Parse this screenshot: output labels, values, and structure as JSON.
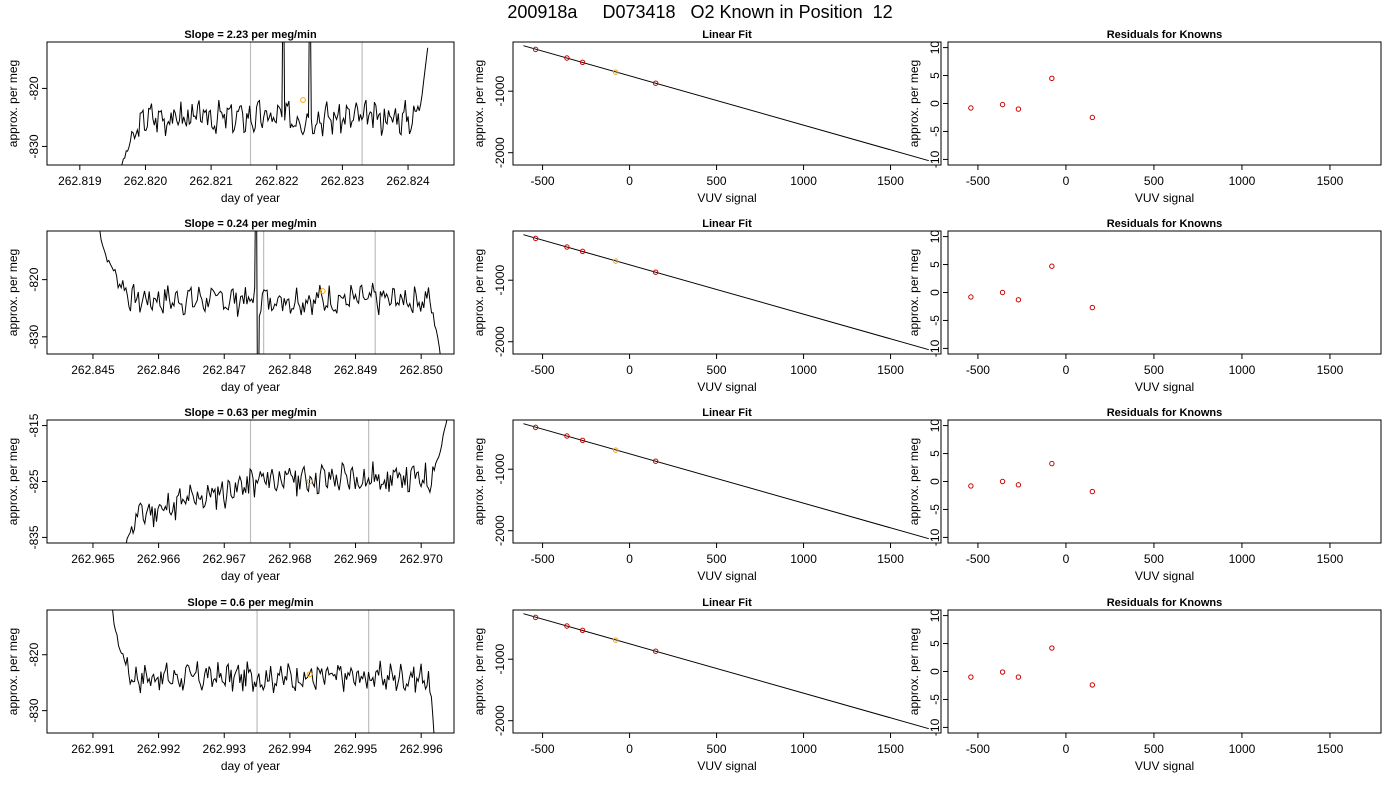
{
  "page_title": "200918a     D073418   O2 Known in Position  12",
  "colors": {
    "trace": "#000000",
    "marker_orange": "#ffa500",
    "residual_marker": "#cc0000",
    "vertical_line": "#bebebe"
  },
  "chart_data": [
    {
      "type": "line",
      "title": "Slope =  2.23  per meg/min",
      "xlabel": "day of year",
      "ylabel": "approx. per meg",
      "xlim": [
        262.8185,
        262.8247
      ],
      "ylim": [
        -833.2,
        -812.0
      ],
      "x_ticks": [
        "262.819",
        "262.820",
        "262.821",
        "262.822",
        "262.823",
        "262.824"
      ],
      "x_tick_values": [
        262.819,
        262.82,
        262.821,
        262.822,
        262.823,
        262.824
      ],
      "y_ticks": [
        "-830",
        "-820"
      ],
      "y_tick_values": [
        -830,
        -820
      ],
      "vertical_lines": [
        262.8216,
        262.8233
      ],
      "marker": {
        "x": 262.8224,
        "y": -822.0
      },
      "trace": {
        "x_start": 262.8196,
        "x_end": 262.8243,
        "flat_start": 262.82,
        "flat_end": 262.8241,
        "level": -825.0,
        "amplitude": 2.2,
        "rise_start": -836.0,
        "end_value": -813.0,
        "seed": 3,
        "spikes": [
          262.8221,
          262.8225
        ]
      }
    },
    {
      "type": "line",
      "title": "Linear Fit",
      "xlabel": "VUV signal",
      "ylabel": "approx. per meg",
      "xlim": [
        -670,
        1790
      ],
      "ylim": [
        -2200,
        -200
      ],
      "x_ticks": [
        "-500",
        "0",
        "500",
        "1000",
        "1500"
      ],
      "x_tick_values": [
        -500,
        0,
        500,
        1000,
        1500
      ],
      "y_ticks": [
        "-2000",
        "-1000"
      ],
      "y_tick_values": [
        -2000,
        -1000
      ],
      "line": {
        "x": [
          -610,
          1720
        ],
        "y": [
          -260,
          -2130
        ]
      },
      "points": [
        {
          "x": -540,
          "y": -320,
          "color": "red"
        },
        {
          "x": -360,
          "y": -460,
          "color": "red"
        },
        {
          "x": -270,
          "y": -530,
          "color": "red"
        },
        {
          "x": -80,
          "y": -690,
          "color": "orange"
        },
        {
          "x": 150,
          "y": -870,
          "color": "red"
        }
      ]
    },
    {
      "type": "scatter",
      "title": "Residuals for Knowns",
      "xlabel": "VUV signal",
      "ylabel": "approx. per meg",
      "xlim": [
        -670,
        1790
      ],
      "ylim": [
        -11,
        11
      ],
      "x_ticks": [
        "-500",
        "0",
        "500",
        "1000",
        "1500"
      ],
      "x_tick_values": [
        -500,
        0,
        500,
        1000,
        1500
      ],
      "y_ticks": [
        "-10",
        "-5",
        "0",
        "5",
        "10"
      ],
      "y_tick_values": [
        -10,
        -5,
        0,
        5,
        10
      ],
      "points": [
        {
          "x": -540,
          "y": -0.8
        },
        {
          "x": -360,
          "y": -0.2
        },
        {
          "x": -270,
          "y": -1.0
        },
        {
          "x": -80,
          "y": 4.5
        },
        {
          "x": 150,
          "y": -2.5
        }
      ]
    },
    {
      "type": "line",
      "title": "Slope =  0.24  per meg/min",
      "xlabel": "day of year",
      "ylabel": "approx. per meg",
      "xlim": [
        262.8443,
        262.8505
      ],
      "ylim": [
        -833.0,
        -811.5
      ],
      "x_ticks": [
        "262.845",
        "262.846",
        "262.847",
        "262.848",
        "262.849",
        "262.850"
      ],
      "x_tick_values": [
        262.845,
        262.846,
        262.847,
        262.848,
        262.849,
        262.85
      ],
      "y_ticks": [
        "-830",
        "-820"
      ],
      "y_tick_values": [
        -830,
        -820
      ],
      "vertical_lines": [
        262.8476,
        262.8493
      ],
      "marker": {
        "x": 262.8485,
        "y": -822.0
      },
      "trace": {
        "x_start": 262.8451,
        "x_end": 262.8503,
        "flat_start": 262.8456,
        "flat_end": 262.8501,
        "level": -823.5,
        "amplitude": 2.0,
        "rise_start": -811.0,
        "end_value": -834.0,
        "seed": 7,
        "spikes": [
          262.8475
        ]
      }
    },
    {
      "type": "line",
      "title": "Linear Fit",
      "xlabel": "VUV signal",
      "ylabel": "approx. per meg",
      "xlim": [
        -670,
        1790
      ],
      "ylim": [
        -2200,
        -200
      ],
      "x_ticks": [
        "-500",
        "0",
        "500",
        "1000",
        "1500"
      ],
      "x_tick_values": [
        -500,
        0,
        500,
        1000,
        1500
      ],
      "y_ticks": [
        "-2000",
        "-1000"
      ],
      "y_tick_values": [
        -2000,
        -1000
      ],
      "line": {
        "x": [
          -610,
          1720
        ],
        "y": [
          -260,
          -2130
        ]
      },
      "points": [
        {
          "x": -540,
          "y": -320,
          "color": "red"
        },
        {
          "x": -360,
          "y": -460,
          "color": "red"
        },
        {
          "x": -270,
          "y": -530,
          "color": "red"
        },
        {
          "x": -80,
          "y": -690,
          "color": "orange"
        },
        {
          "x": 150,
          "y": -870,
          "color": "red"
        }
      ]
    },
    {
      "type": "scatter",
      "title": "Residuals for Knowns",
      "xlabel": "VUV signal",
      "ylabel": "approx. per meg",
      "xlim": [
        -670,
        1790
      ],
      "ylim": [
        -11,
        11
      ],
      "x_ticks": [
        "-500",
        "0",
        "500",
        "1000",
        "1500"
      ],
      "x_tick_values": [
        -500,
        0,
        500,
        1000,
        1500
      ],
      "y_ticks": [
        "-10",
        "-5",
        "0",
        "5",
        "10"
      ],
      "y_tick_values": [
        -10,
        -5,
        0,
        5,
        10
      ],
      "points": [
        {
          "x": -540,
          "y": -0.8
        },
        {
          "x": -360,
          "y": 0.0
        },
        {
          "x": -270,
          "y": -1.3
        },
        {
          "x": -80,
          "y": 4.7
        },
        {
          "x": 150,
          "y": -2.7
        }
      ]
    },
    {
      "type": "line",
      "title": "Slope =  0.63  per meg/min",
      "xlabel": "day of year",
      "ylabel": "approx. per meg",
      "xlim": [
        262.9643,
        262.9705
      ],
      "ylim": [
        -836.0,
        -814.0
      ],
      "x_ticks": [
        "262.965",
        "262.966",
        "262.967",
        "262.968",
        "262.969",
        "262.970"
      ],
      "x_tick_values": [
        262.965,
        262.966,
        262.967,
        262.968,
        262.969,
        262.97
      ],
      "y_ticks": [
        "-835",
        "-825",
        "-815"
      ],
      "y_tick_values": [
        -835,
        -825,
        -815
      ],
      "vertical_lines": [
        262.9674,
        262.9692
      ],
      "marker": {
        "x": 262.9683,
        "y": -825.0
      },
      "trace": {
        "x_start": 262.9655,
        "x_end": 262.9704,
        "flat_start": 262.9657,
        "flat_end": 262.9701,
        "level_start": -831.0,
        "level": -824.5,
        "amplitude": 2.3,
        "rise_start": -836.5,
        "end_value": -813.5,
        "seed": 11,
        "spikes": []
      }
    },
    {
      "type": "line",
      "title": "Linear Fit",
      "xlabel": "VUV signal",
      "ylabel": "approx. per meg",
      "xlim": [
        -670,
        1790
      ],
      "ylim": [
        -2200,
        -200
      ],
      "x_ticks": [
        "-500",
        "0",
        "500",
        "1000",
        "1500"
      ],
      "x_tick_values": [
        -500,
        0,
        500,
        1000,
        1500
      ],
      "y_ticks": [
        "-2000",
        "-1000"
      ],
      "y_tick_values": [
        -2000,
        -1000
      ],
      "line": {
        "x": [
          -610,
          1720
        ],
        "y": [
          -260,
          -2130
        ]
      },
      "points": [
        {
          "x": -540,
          "y": -320,
          "color": "red"
        },
        {
          "x": -360,
          "y": -460,
          "color": "red"
        },
        {
          "x": -270,
          "y": -530,
          "color": "red"
        },
        {
          "x": -80,
          "y": -690,
          "color": "orange"
        },
        {
          "x": 150,
          "y": -870,
          "color": "red"
        }
      ]
    },
    {
      "type": "scatter",
      "title": "Residuals for Knowns",
      "xlabel": "VUV signal",
      "ylabel": "approx. per meg",
      "xlim": [
        -670,
        1790
      ],
      "ylim": [
        -11,
        11
      ],
      "x_ticks": [
        "-500",
        "0",
        "500",
        "1000",
        "1500"
      ],
      "x_tick_values": [
        -500,
        0,
        500,
        1000,
        1500
      ],
      "y_ticks": [
        "-10",
        "-5",
        "0",
        "5",
        "10"
      ],
      "y_tick_values": [
        -10,
        -5,
        0,
        5,
        10
      ],
      "points": [
        {
          "x": -540,
          "y": -0.8
        },
        {
          "x": -360,
          "y": 0.0
        },
        {
          "x": -270,
          "y": -0.6
        },
        {
          "x": -80,
          "y": 3.2
        },
        {
          "x": 150,
          "y": -1.8
        }
      ]
    },
    {
      "type": "line",
      "title": "Slope =  0.6  per meg/min",
      "xlabel": "day of year",
      "ylabel": "approx. per meg",
      "xlim": [
        262.9903,
        262.9965
      ],
      "ylim": [
        -834.0,
        -812.0
      ],
      "x_ticks": [
        "262.991",
        "262.992",
        "262.993",
        "262.994",
        "262.995",
        "262.996"
      ],
      "x_tick_values": [
        262.991,
        262.992,
        262.993,
        262.994,
        262.995,
        262.996
      ],
      "y_ticks": [
        "-830",
        "-820"
      ],
      "y_tick_values": [
        -830,
        -820
      ],
      "vertical_lines": [
        262.9935,
        262.9952
      ],
      "marker": {
        "x": 262.9943,
        "y": -823.5
      },
      "trace": {
        "x_start": 262.9913,
        "x_end": 262.9962,
        "flat_start": 262.9916,
        "flat_end": 262.9961,
        "level": -824.0,
        "amplitude": 2.0,
        "rise_start": -812.0,
        "end_value": -835.0,
        "seed": 17,
        "spikes": []
      }
    },
    {
      "type": "line",
      "title": "Linear Fit",
      "xlabel": "VUV signal",
      "ylabel": "approx. per meg",
      "xlim": [
        -670,
        1790
      ],
      "ylim": [
        -2200,
        -200
      ],
      "x_ticks": [
        "-500",
        "0",
        "500",
        "1000",
        "1500"
      ],
      "x_tick_values": [
        -500,
        0,
        500,
        1000,
        1500
      ],
      "y_ticks": [
        "-2000",
        "-1000"
      ],
      "y_tick_values": [
        -2000,
        -1000
      ],
      "line": {
        "x": [
          -610,
          1720
        ],
        "y": [
          -260,
          -2130
        ]
      },
      "points": [
        {
          "x": -540,
          "y": -320,
          "color": "red"
        },
        {
          "x": -360,
          "y": -460,
          "color": "red"
        },
        {
          "x": -270,
          "y": -530,
          "color": "red"
        },
        {
          "x": -80,
          "y": -690,
          "color": "orange"
        },
        {
          "x": 150,
          "y": -870,
          "color": "red"
        }
      ]
    },
    {
      "type": "scatter",
      "title": "Residuals for Knowns",
      "xlabel": "VUV signal",
      "ylabel": "approx. per meg",
      "xlim": [
        -670,
        1790
      ],
      "ylim": [
        -11,
        11
      ],
      "x_ticks": [
        "-500",
        "0",
        "500",
        "1000",
        "1500"
      ],
      "x_tick_values": [
        -500,
        0,
        500,
        1000,
        1500
      ],
      "y_ticks": [
        "-10",
        "-5",
        "0",
        "5",
        "10"
      ],
      "y_tick_values": [
        -10,
        -5,
        0,
        5,
        10
      ],
      "points": [
        {
          "x": -540,
          "y": -1.0
        },
        {
          "x": -360,
          "y": -0.1
        },
        {
          "x": -270,
          "y": -1.0
        },
        {
          "x": -80,
          "y": 4.2
        },
        {
          "x": 150,
          "y": -2.4
        }
      ]
    }
  ]
}
